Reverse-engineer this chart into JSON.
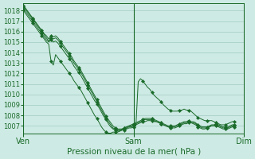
{
  "title": "Pression niveau de la mer( hPa )",
  "bg_color": "#ceeae4",
  "grid_color": "#a8d0ca",
  "line_color": "#1a6b2a",
  "marker_color": "#1a6b2a",
  "ylim": [
    1006.3,
    1018.7
  ],
  "yticks": [
    1007,
    1008,
    1009,
    1010,
    1011,
    1012,
    1013,
    1014,
    1015,
    1016,
    1017,
    1018
  ],
  "xtick_labels": [
    "Ven",
    "Sam",
    "Dim"
  ],
  "xtick_positions": [
    0,
    48,
    96
  ],
  "xlim": [
    0,
    96
  ],
  "series": [
    [
      1018.2,
      1017.9,
      1017.6,
      1017.3,
      1017.0,
      1016.7,
      1016.4,
      1016.1,
      1015.8,
      1015.5,
      1015.2,
      1015.0,
      1015.2,
      1015.0,
      1015.1,
      1014.9,
      1014.6,
      1014.3,
      1014.0,
      1013.7,
      1013.4,
      1013.1,
      1012.7,
      1012.4,
      1012.1,
      1011.8,
      1011.4,
      1011.0,
      1010.6,
      1010.2,
      1009.8,
      1009.4,
      1009.1,
      1008.7,
      1008.3,
      1007.9,
      1007.6,
      1007.2,
      1006.9,
      1006.7,
      1006.6,
      1006.5,
      1006.5,
      1006.6,
      1006.7,
      1006.8,
      1006.9,
      1006.9,
      1007.0,
      1007.1,
      1007.2,
      1007.3,
      1007.4,
      1007.4,
      1007.5,
      1007.5,
      1007.5,
      1007.4,
      1007.4,
      1007.3,
      1007.2,
      1007.1,
      1007.0,
      1006.9,
      1006.8,
      1006.8,
      1006.8,
      1006.9,
      1007.0,
      1007.1,
      1007.2,
      1007.2,
      1007.3,
      1007.3,
      1007.2,
      1007.1,
      1006.9,
      1006.8,
      1006.7,
      1006.7,
      1006.8,
      1006.9,
      1007.0,
      1007.0,
      1007.0,
      1006.9,
      1006.8,
      1006.7,
      1006.7,
      1006.7,
      1006.8,
      1006.9,
      1006.9
    ],
    [
      1018.4,
      1018.1,
      1017.8,
      1017.5,
      1017.2,
      1016.9,
      1016.6,
      1016.3,
      1016.0,
      1015.7,
      1015.4,
      1015.1,
      1015.4,
      1015.3,
      1015.4,
      1015.2,
      1014.9,
      1014.6,
      1014.3,
      1014.0,
      1013.7,
      1013.4,
      1013.0,
      1012.7,
      1012.4,
      1012.1,
      1011.7,
      1011.3,
      1010.9,
      1010.5,
      1010.1,
      1009.7,
      1009.3,
      1008.9,
      1008.5,
      1008.1,
      1007.7,
      1007.4,
      1007.1,
      1006.8,
      1006.7,
      1006.6,
      1006.6,
      1006.7,
      1006.8,
      1006.9,
      1007.0,
      1007.0,
      1007.1,
      1007.2,
      1007.3,
      1007.4,
      1007.5,
      1007.6,
      1007.6,
      1007.6,
      1007.6,
      1007.5,
      1007.4,
      1007.3,
      1007.2,
      1007.1,
      1007.0,
      1006.9,
      1006.9,
      1006.9,
      1006.9,
      1007.0,
      1007.1,
      1007.2,
      1007.3,
      1007.3,
      1007.4,
      1007.3,
      1007.3,
      1007.2,
      1007.0,
      1006.9,
      1006.8,
      1006.8,
      1006.8,
      1006.9,
      1007.0,
      1007.0,
      1007.1,
      1007.0,
      1006.9,
      1006.8,
      1006.8,
      1006.8,
      1006.9,
      1007.0,
      1007.0
    ],
    [
      1018.0,
      1017.7,
      1017.4,
      1017.1,
      1016.8,
      1016.5,
      1016.2,
      1015.9,
      1015.6,
      1015.3,
      1015.0,
      1014.8,
      1013.2,
      1012.8,
      1013.8,
      1013.5,
      1013.2,
      1012.9,
      1012.6,
      1012.3,
      1012.0,
      1011.7,
      1011.3,
      1011.0,
      1010.7,
      1010.4,
      1010.0,
      1009.6,
      1009.2,
      1008.8,
      1008.4,
      1008.0,
      1007.7,
      1007.3,
      1006.9,
      1006.6,
      1006.4,
      1006.3,
      1006.3,
      1006.4,
      1006.4,
      1006.4,
      1006.5,
      1006.6,
      1006.6,
      1006.7,
      1006.8,
      1006.8,
      1006.9,
      1007.0,
      1011.2,
      1011.5,
      1011.3,
      1011.0,
      1010.7,
      1010.5,
      1010.2,
      1009.9,
      1009.7,
      1009.5,
      1009.3,
      1009.0,
      1008.8,
      1008.6,
      1008.5,
      1008.4,
      1008.4,
      1008.4,
      1008.5,
      1008.5,
      1008.6,
      1008.5,
      1008.5,
      1008.4,
      1008.2,
      1008.0,
      1007.8,
      1007.7,
      1007.6,
      1007.5,
      1007.5,
      1007.5,
      1007.5,
      1007.4,
      1007.3,
      1007.2,
      1007.1,
      1007.1,
      1007.1,
      1007.2,
      1007.3,
      1007.4,
      1007.4
    ],
    [
      1018.5,
      1018.2,
      1017.9,
      1017.6,
      1017.3,
      1017.0,
      1016.7,
      1016.4,
      1016.1,
      1015.8,
      1015.6,
      1015.3,
      1015.6,
      1015.5,
      1015.6,
      1015.4,
      1015.1,
      1014.8,
      1014.5,
      1014.2,
      1013.9,
      1013.6,
      1013.2,
      1012.9,
      1012.6,
      1012.3,
      1011.9,
      1011.5,
      1011.1,
      1010.7,
      1010.3,
      1009.9,
      1009.5,
      1009.1,
      1008.7,
      1008.3,
      1007.9,
      1007.6,
      1007.3,
      1007.0,
      1006.8,
      1006.7,
      1006.7,
      1006.7,
      1006.8,
      1006.9,
      1007.0,
      1007.1,
      1007.2,
      1007.3,
      1007.4,
      1007.5,
      1007.6,
      1007.7,
      1007.7,
      1007.7,
      1007.7,
      1007.6,
      1007.5,
      1007.4,
      1007.3,
      1007.2,
      1007.1,
      1007.0,
      1007.0,
      1007.0,
      1007.0,
      1007.1,
      1007.2,
      1007.3,
      1007.4,
      1007.4,
      1007.5,
      1007.4,
      1007.4,
      1007.3,
      1007.1,
      1007.0,
      1006.9,
      1006.9,
      1006.9,
      1007.0,
      1007.1,
      1007.1,
      1007.2,
      1007.1,
      1007.0,
      1006.9,
      1006.9,
      1006.9,
      1007.0,
      1007.1,
      1007.1
    ]
  ]
}
